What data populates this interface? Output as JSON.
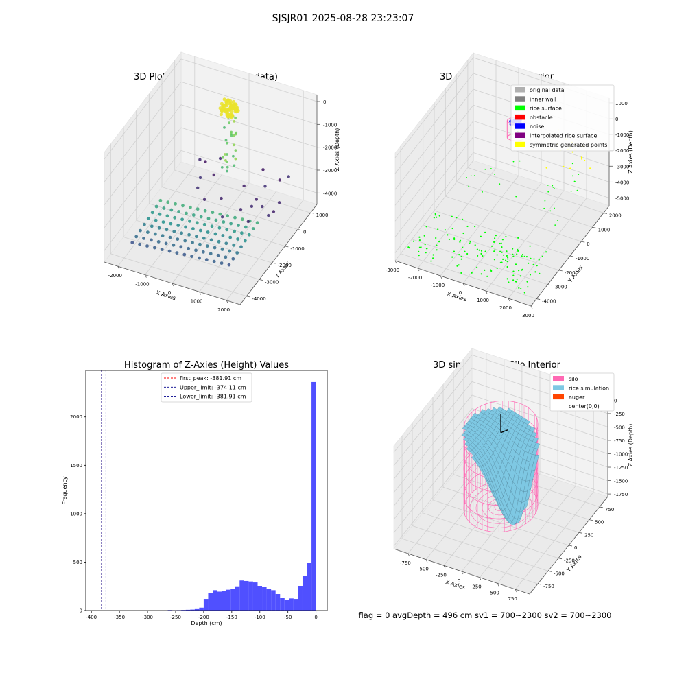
{
  "suptitle": "SJSJR01 2025-08-28 23:23:07",
  "footer": "flag = 0     avgDepth = 496 cm  sv1 = 700~2300  sv2 = 700~2300",
  "colors": {
    "hist_bar": "#4c4cff",
    "first_peak_line": "#ff0000",
    "limit_lines": "#00008b",
    "pane_side": "#f2f2f2",
    "pane_floor": "#ebebeb",
    "grid": "#d0d0d0",
    "silo": "#ff69b4",
    "rice": "#7ec8e3",
    "auger": "#ff4500"
  },
  "chart_data": [
    {
      "type": "scatter",
      "projection": "3d",
      "title": "3D Plot of Silo Interior(row data)",
      "xlabel": "X Axies",
      "ylabel": "Y Axies",
      "zlabel": "Z Axies (Depth)",
      "xticks": [
        "-2000",
        "-1000",
        "0",
        "1000",
        "2000"
      ],
      "yticks": [
        "-4000",
        "-3000",
        "-2000",
        "-1000",
        "0",
        "1000"
      ],
      "zticks": [
        "-4000",
        "-3000",
        "-2000",
        "-1000",
        "0"
      ],
      "xlim": [
        -2500,
        2500
      ],
      "ylim": [
        -4500,
        1500
      ],
      "zlim": [
        -4500,
        300
      ],
      "colormap": "viridis",
      "note_points": "point cloud colored by depth; deep scan arcs near Z ≈ -4000, vertical column near X ≈ 0, Y ≈ 0 up to Z ≈ 0"
    },
    {
      "type": "scatter",
      "projection": "3d",
      "title": "3D classify of Silo Interior",
      "xlabel": "X Axies",
      "ylabel": "Y Axies",
      "zlabel": "Z Axies (Depth)",
      "xticks": [
        "-3000",
        "-2000",
        "-1000",
        "0",
        "1000",
        "2000",
        "3000"
      ],
      "yticks": [
        "-4000",
        "-3000",
        "-2000",
        "-1000",
        "0",
        "1000",
        "2000"
      ],
      "zticks": [
        "-5000",
        "-4000",
        "-3000",
        "-2000",
        "-1000",
        "0",
        "1000"
      ],
      "xlim": [
        -3000,
        3000
      ],
      "ylim": [
        -4500,
        2500
      ],
      "zlim": [
        -5500,
        1300
      ],
      "legend": [
        {
          "label": "original data",
          "color": "#b0b0b0"
        },
        {
          "label": "inner wall",
          "color": "#808080"
        },
        {
          "label": "rice surface",
          "color": "#00ff00"
        },
        {
          "label": "obstacle",
          "color": "#ff0000"
        },
        {
          "label": "noise",
          "color": "#0000ff"
        },
        {
          "label": "interpolated rice surface",
          "color": "#800080"
        },
        {
          "label": "symmetric generated points",
          "color": "#ffff00"
        }
      ],
      "legend_loc": "upper right"
    },
    {
      "type": "bar",
      "title": "Histogram of Z-Axies (Height) Values",
      "xlabel": "Depth (cm)",
      "ylabel": "Frequency",
      "xlim": [
        -410,
        20
      ],
      "ylim": [
        0,
        2480
      ],
      "xticks": [
        -400,
        -350,
        -300,
        -250,
        -200,
        -150,
        -100,
        -50,
        0
      ],
      "yticks": [
        0,
        500,
        1000,
        1500,
        2000
      ],
      "bin_width": 8,
      "bins": [
        {
          "start": -264,
          "count": 5
        },
        {
          "start": -256,
          "count": 2
        },
        {
          "start": -248,
          "count": 4
        },
        {
          "start": -240,
          "count": 6
        },
        {
          "start": -232,
          "count": 8
        },
        {
          "start": -224,
          "count": 10
        },
        {
          "start": -216,
          "count": 15
        },
        {
          "start": -208,
          "count": 30
        },
        {
          "start": -200,
          "count": 120
        },
        {
          "start": -192,
          "count": 180
        },
        {
          "start": -184,
          "count": 210
        },
        {
          "start": -176,
          "count": 195
        },
        {
          "start": -168,
          "count": 205
        },
        {
          "start": -160,
          "count": 215
        },
        {
          "start": -152,
          "count": 220
        },
        {
          "start": -144,
          "count": 250
        },
        {
          "start": -136,
          "count": 310
        },
        {
          "start": -128,
          "count": 305
        },
        {
          "start": -120,
          "count": 300
        },
        {
          "start": -112,
          "count": 290
        },
        {
          "start": -104,
          "count": 255
        },
        {
          "start": -96,
          "count": 245
        },
        {
          "start": -88,
          "count": 225
        },
        {
          "start": -80,
          "count": 210
        },
        {
          "start": -72,
          "count": 170
        },
        {
          "start": -64,
          "count": 130
        },
        {
          "start": -56,
          "count": 110
        },
        {
          "start": -48,
          "count": 125
        },
        {
          "start": -40,
          "count": 120
        },
        {
          "start": -32,
          "count": 255
        },
        {
          "start": -24,
          "count": 355
        },
        {
          "start": -16,
          "count": 495
        },
        {
          "start": -8,
          "count": 2360
        }
      ],
      "vlines": [
        {
          "label": "first_peak: -381.91 cm",
          "x": -381.91,
          "color": "#ff0000"
        },
        {
          "label": "Upper_limit: -374.11 cm",
          "x": -374.11,
          "color": "#00008b"
        },
        {
          "label": "Lower_limit: -381.91 cm",
          "x": -381.91,
          "color": "#00008b"
        }
      ],
      "legend_loc": "upper center"
    },
    {
      "type": "surface",
      "projection": "3d",
      "title": "3D simulation of Silo Interior",
      "xlabel": "X Axies",
      "ylabel": "Y Axies",
      "zlabel": "Z Axies (Depth)",
      "xticks": [
        "-750",
        "-500",
        "-250",
        "0",
        "250",
        "500",
        "750"
      ],
      "yticks": [
        "-750",
        "-500",
        "-250",
        "0",
        "250",
        "500",
        "750"
      ],
      "zticks": [
        "-1750",
        "-1500",
        "-1250",
        "-1000",
        "-750",
        "-500",
        "-250",
        "0"
      ],
      "xlim": [
        -950,
        950
      ],
      "ylim": [
        -950,
        950
      ],
      "zlim": [
        -1800,
        120
      ],
      "legend": [
        {
          "label": "silo",
          "color": "#ff69b4"
        },
        {
          "label": "rice simulation",
          "color": "#7ec8e3"
        },
        {
          "label": "auger",
          "color": "#ff4500"
        },
        {
          "label": "center(0,0)",
          "color": ""
        }
      ],
      "legend_loc": "upper right"
    }
  ]
}
